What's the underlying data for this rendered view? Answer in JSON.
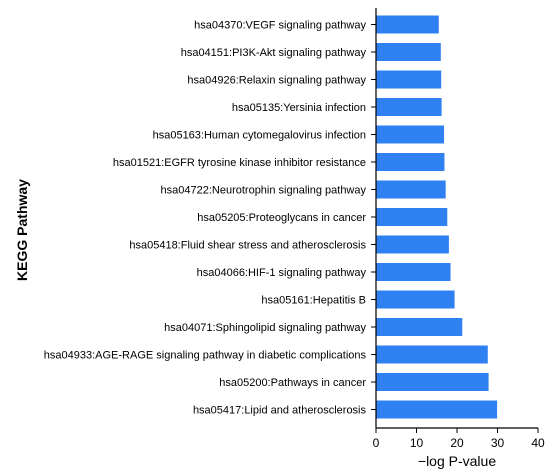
{
  "chart_data": {
    "type": "bar",
    "orientation": "horizontal",
    "title": "",
    "xlabel": "−log P-value",
    "ylabel": "KEGG Pathway",
    "xlim": [
      0,
      40
    ],
    "xticks": [
      "0",
      "10",
      "20",
      "30",
      "40"
    ],
    "grid": false,
    "categories": [
      "hsa04370:VEGF signaling pathway",
      "hsa04151:PI3K-Akt signaling pathway",
      "hsa04926:Relaxin signaling pathway",
      "hsa05135:Yersinia infection",
      "hsa05163:Human cytomegalovirus infection",
      "hsa01521:EGFR tyrosine kinase inhibitor resistance",
      "hsa04722:Neurotrophin signaling pathway",
      "hsa05205:Proteoglycans in cancer",
      "hsa05418:Fluid shear stress and atherosclerosis",
      "hsa04066:HIF-1 signaling pathway",
      "hsa05161:Hepatitis B",
      "hsa04071:Sphingolipid signaling pathway",
      "hsa04933:AGE-RAGE signaling pathway in diabetic complications",
      "hsa05200:Pathways in cancer",
      "hsa05417:Lipid and atherosclerosis"
    ],
    "values": [
      15.5,
      16.0,
      16.1,
      16.2,
      16.8,
      16.9,
      17.2,
      17.6,
      18.0,
      18.4,
      19.4,
      21.3,
      27.6,
      27.8,
      29.9
    ],
    "bar_color": "#2f80f0"
  }
}
